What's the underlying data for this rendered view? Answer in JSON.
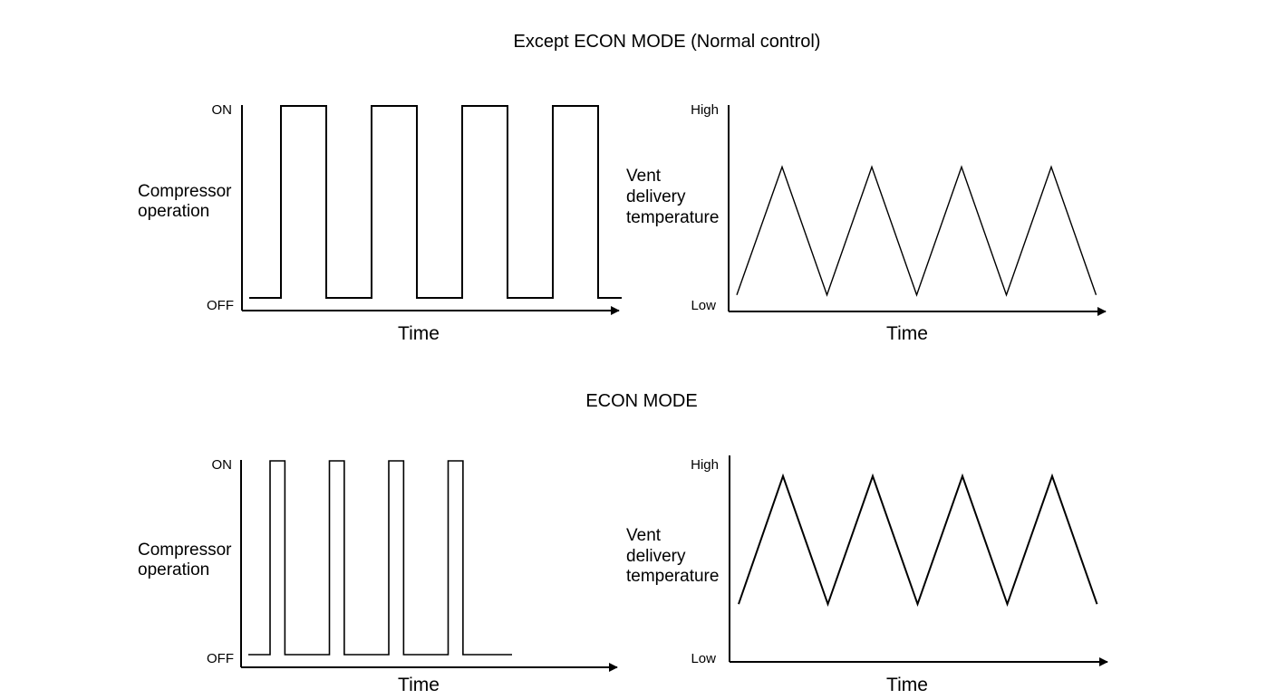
{
  "sections": [
    {
      "title": "Except ECON MODE (Normal control)",
      "compressor": {
        "ylabel_lines": [
          "Compressor",
          "operation"
        ],
        "tick_high": "ON",
        "tick_low": "OFF",
        "xlabel": "Time",
        "cycles": 4,
        "duty_on_fraction": 0.5,
        "states": [
          "OFF",
          "ON"
        ]
      },
      "vent": {
        "ylabel_lines": [
          "Vent",
          "delivery",
          "temperature"
        ],
        "tick_high": "High",
        "tick_low": "Low",
        "xlabel": "Time",
        "peaks": 4,
        "peak_level": 0.7,
        "trough_level": 0.08
      }
    },
    {
      "title": "ECON MODE",
      "compressor": {
        "ylabel_lines": [
          "Compressor",
          "operation"
        ],
        "tick_high": "ON",
        "tick_low": "OFF",
        "xlabel": "Time",
        "cycles": 4,
        "duty_on_fraction": 0.25,
        "states": [
          "OFF",
          "ON"
        ]
      },
      "vent": {
        "ylabel_lines": [
          "Vent",
          "delivery",
          "temperature"
        ],
        "tick_high": "High",
        "tick_low": "Low",
        "xlabel": "Time",
        "peaks": 4,
        "peak_level": 0.9,
        "trough_level": 0.28
      }
    }
  ]
}
